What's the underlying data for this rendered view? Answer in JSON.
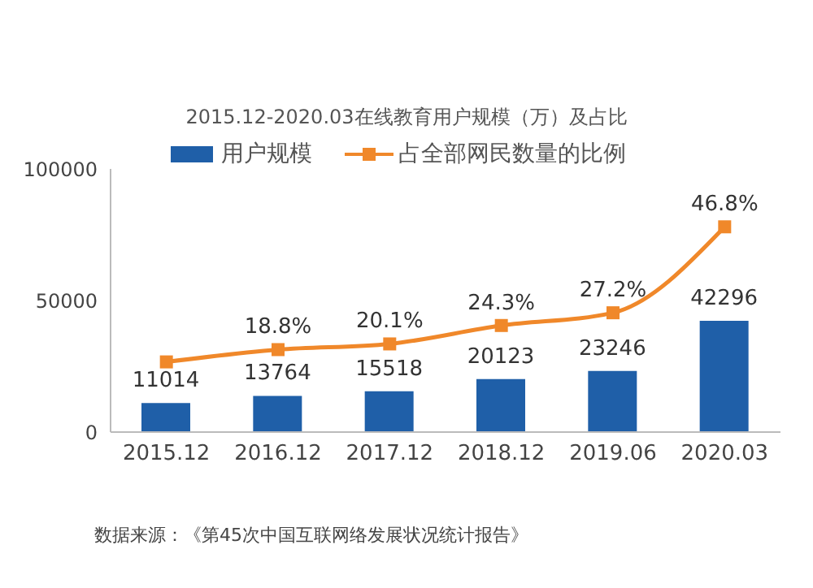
{
  "chart_data": {
    "type": "bar",
    "title": "2015.12-2020.03在线教育用户规模（万）及占比",
    "categories": [
      "2015.12",
      "2016.12",
      "2017.12",
      "2018.12",
      "2019.06",
      "2020.03"
    ],
    "series": [
      {
        "name": "用户规模",
        "color": "#1f5fa8",
        "values": [
          11014,
          13764,
          15518,
          20123,
          23246,
          42296
        ],
        "value_labels": [
          "11014",
          "13764",
          "15518",
          "20123",
          "23246",
          "42296"
        ]
      },
      {
        "name": "占全部网民数量的比例",
        "type": "line",
        "axis": "y2",
        "color": "#f0882a",
        "values": [
          16.0,
          18.8,
          20.1,
          24.3,
          27.2,
          46.8
        ],
        "value_labels": [
          null,
          "18.8%",
          "20.1%",
          "24.3%",
          "27.2%",
          "46.8%"
        ]
      }
    ],
    "ylim": [
      0,
      100000
    ],
    "yticks": [
      0,
      50000,
      100000
    ],
    "y2lim": [
      0,
      60
    ],
    "tick_labels": "xy",
    "marker": "square",
    "legend": "top",
    "annotations": [
      "数据来源：《第45次中国互联网络发展状况统计报告》"
    ]
  }
}
